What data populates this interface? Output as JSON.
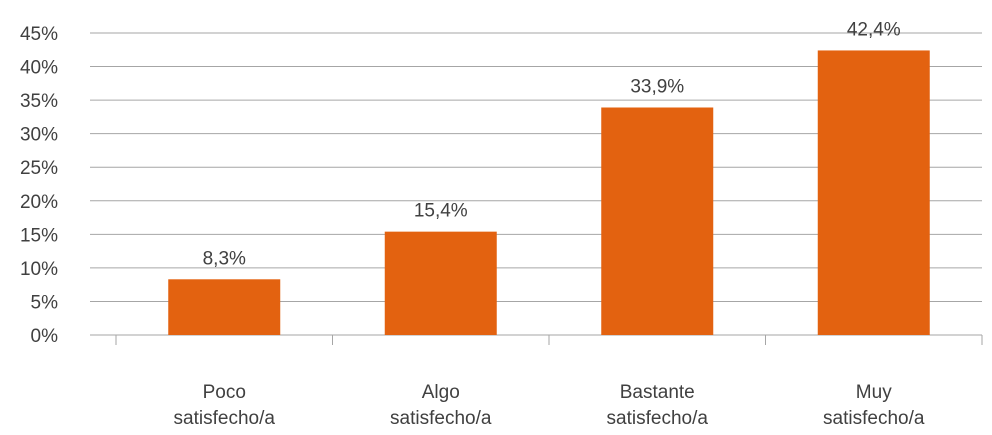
{
  "chart_data": {
    "type": "bar",
    "categories": [
      [
        "Poco",
        "satisfecho/a"
      ],
      [
        "Algo",
        "satisfecho/a"
      ],
      [
        "Bastante",
        "satisfecho/a"
      ],
      [
        "Muy",
        "satisfecho/a"
      ]
    ],
    "values": [
      8.3,
      15.4,
      33.9,
      42.4
    ],
    "data_labels": [
      "8,3%",
      "15,4%",
      "33,9%",
      "42,4%"
    ],
    "yticks": [
      "0%",
      "5%",
      "10%",
      "15%",
      "20%",
      "25%",
      "30%",
      "35%",
      "40%",
      "45%"
    ],
    "ylim": [
      0,
      45
    ],
    "grid": true,
    "legend": "none",
    "colors": {
      "bar": "#E36210",
      "grid": "#A6A6A6",
      "text": "#404040"
    }
  }
}
